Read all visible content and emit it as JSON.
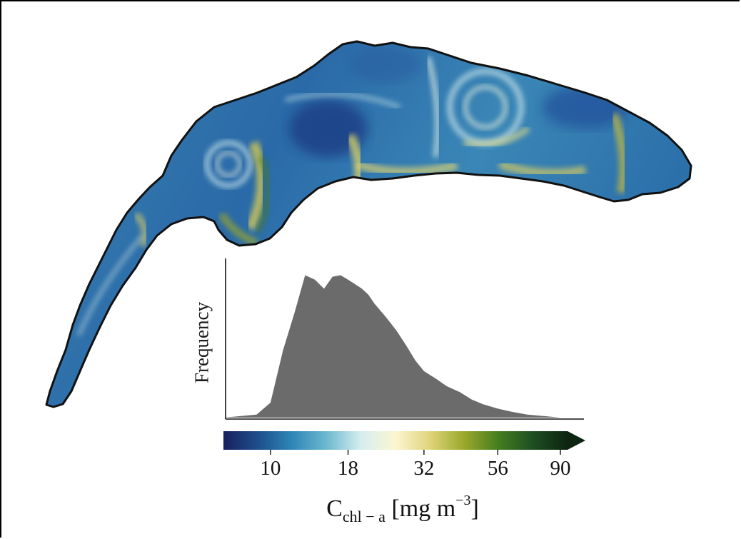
{
  "figure": {
    "inset": {
      "type": "histogram",
      "ylabel": "Frequency",
      "bar_color": "#6b6b6b"
    },
    "colorbar": {
      "ticks": [
        "10",
        "18",
        "32",
        "56",
        "90"
      ],
      "label_main": "C",
      "label_sub": "chl − a",
      "label_unit": " [mg m",
      "label_sup": "−3",
      "label_close": "]",
      "extend": "max",
      "colors": [
        "#1a1f5e",
        "#1c4f8c",
        "#2f86b8",
        "#6cb9cf",
        "#d6eef0",
        "#fbf6d0",
        "#e0d47a",
        "#9aa82a",
        "#447d1f",
        "#1d4e22",
        "#0d2410"
      ]
    }
  },
  "chart_data": {
    "type": "histogram",
    "xlabel": "C chl−a [mg m−3]",
    "ylabel": "Frequency",
    "x_scale": "log",
    "x_ticks": [
      10,
      18,
      32,
      56,
      90
    ],
    "xlim": [
      7,
      95
    ],
    "grid": false,
    "series": [
      {
        "x": [
          7,
          9,
          10,
          11,
          12,
          13,
          14,
          15,
          16,
          17,
          18,
          19,
          20,
          21,
          22,
          24,
          26,
          28,
          30,
          32,
          35,
          38,
          42,
          46,
          50,
          56,
          62,
          70,
          80,
          90
        ],
        "values": [
          0.0,
          0.02,
          0.1,
          0.45,
          0.7,
          0.95,
          0.92,
          0.86,
          0.94,
          0.95,
          0.92,
          0.89,
          0.86,
          0.82,
          0.76,
          0.67,
          0.58,
          0.48,
          0.38,
          0.31,
          0.26,
          0.21,
          0.17,
          0.12,
          0.09,
          0.06,
          0.04,
          0.02,
          0.01,
          0.0
        ]
      }
    ]
  }
}
